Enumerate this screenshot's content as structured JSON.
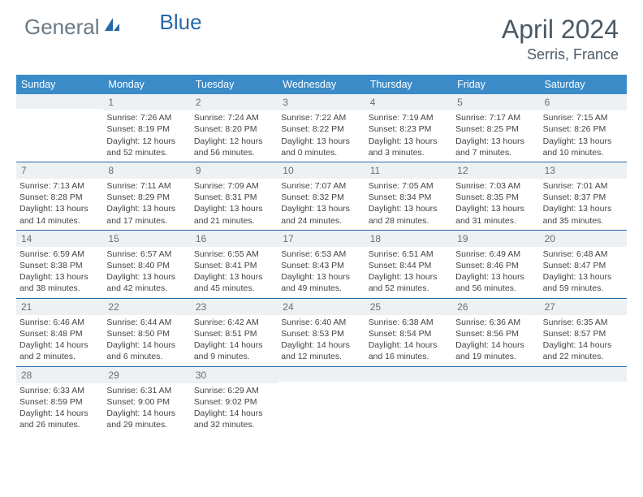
{
  "brand": {
    "part1": "General",
    "part2": "Blue"
  },
  "title": "April 2024",
  "location": "Serris, France",
  "colors": {
    "header_bar": "#3b8bc9",
    "rule": "#2869a8",
    "daynum_bg": "#eef1f3",
    "text": "#3a3a3a",
    "brand_gray": "#6a7a85",
    "brand_blue": "#2869a8"
  },
  "dow": [
    "Sunday",
    "Monday",
    "Tuesday",
    "Wednesday",
    "Thursday",
    "Friday",
    "Saturday"
  ],
  "weeks": [
    [
      {
        "n": "",
        "sunrise": "",
        "sunset": "",
        "daylight": ""
      },
      {
        "n": "1",
        "sunrise": "Sunrise: 7:26 AM",
        "sunset": "Sunset: 8:19 PM",
        "daylight": "Daylight: 12 hours and 52 minutes."
      },
      {
        "n": "2",
        "sunrise": "Sunrise: 7:24 AM",
        "sunset": "Sunset: 8:20 PM",
        "daylight": "Daylight: 12 hours and 56 minutes."
      },
      {
        "n": "3",
        "sunrise": "Sunrise: 7:22 AM",
        "sunset": "Sunset: 8:22 PM",
        "daylight": "Daylight: 13 hours and 0 minutes."
      },
      {
        "n": "4",
        "sunrise": "Sunrise: 7:19 AM",
        "sunset": "Sunset: 8:23 PM",
        "daylight": "Daylight: 13 hours and 3 minutes."
      },
      {
        "n": "5",
        "sunrise": "Sunrise: 7:17 AM",
        "sunset": "Sunset: 8:25 PM",
        "daylight": "Daylight: 13 hours and 7 minutes."
      },
      {
        "n": "6",
        "sunrise": "Sunrise: 7:15 AM",
        "sunset": "Sunset: 8:26 PM",
        "daylight": "Daylight: 13 hours and 10 minutes."
      }
    ],
    [
      {
        "n": "7",
        "sunrise": "Sunrise: 7:13 AM",
        "sunset": "Sunset: 8:28 PM",
        "daylight": "Daylight: 13 hours and 14 minutes."
      },
      {
        "n": "8",
        "sunrise": "Sunrise: 7:11 AM",
        "sunset": "Sunset: 8:29 PM",
        "daylight": "Daylight: 13 hours and 17 minutes."
      },
      {
        "n": "9",
        "sunrise": "Sunrise: 7:09 AM",
        "sunset": "Sunset: 8:31 PM",
        "daylight": "Daylight: 13 hours and 21 minutes."
      },
      {
        "n": "10",
        "sunrise": "Sunrise: 7:07 AM",
        "sunset": "Sunset: 8:32 PM",
        "daylight": "Daylight: 13 hours and 24 minutes."
      },
      {
        "n": "11",
        "sunrise": "Sunrise: 7:05 AM",
        "sunset": "Sunset: 8:34 PM",
        "daylight": "Daylight: 13 hours and 28 minutes."
      },
      {
        "n": "12",
        "sunrise": "Sunrise: 7:03 AM",
        "sunset": "Sunset: 8:35 PM",
        "daylight": "Daylight: 13 hours and 31 minutes."
      },
      {
        "n": "13",
        "sunrise": "Sunrise: 7:01 AM",
        "sunset": "Sunset: 8:37 PM",
        "daylight": "Daylight: 13 hours and 35 minutes."
      }
    ],
    [
      {
        "n": "14",
        "sunrise": "Sunrise: 6:59 AM",
        "sunset": "Sunset: 8:38 PM",
        "daylight": "Daylight: 13 hours and 38 minutes."
      },
      {
        "n": "15",
        "sunrise": "Sunrise: 6:57 AM",
        "sunset": "Sunset: 8:40 PM",
        "daylight": "Daylight: 13 hours and 42 minutes."
      },
      {
        "n": "16",
        "sunrise": "Sunrise: 6:55 AM",
        "sunset": "Sunset: 8:41 PM",
        "daylight": "Daylight: 13 hours and 45 minutes."
      },
      {
        "n": "17",
        "sunrise": "Sunrise: 6:53 AM",
        "sunset": "Sunset: 8:43 PM",
        "daylight": "Daylight: 13 hours and 49 minutes."
      },
      {
        "n": "18",
        "sunrise": "Sunrise: 6:51 AM",
        "sunset": "Sunset: 8:44 PM",
        "daylight": "Daylight: 13 hours and 52 minutes."
      },
      {
        "n": "19",
        "sunrise": "Sunrise: 6:49 AM",
        "sunset": "Sunset: 8:46 PM",
        "daylight": "Daylight: 13 hours and 56 minutes."
      },
      {
        "n": "20",
        "sunrise": "Sunrise: 6:48 AM",
        "sunset": "Sunset: 8:47 PM",
        "daylight": "Daylight: 13 hours and 59 minutes."
      }
    ],
    [
      {
        "n": "21",
        "sunrise": "Sunrise: 6:46 AM",
        "sunset": "Sunset: 8:48 PM",
        "daylight": "Daylight: 14 hours and 2 minutes."
      },
      {
        "n": "22",
        "sunrise": "Sunrise: 6:44 AM",
        "sunset": "Sunset: 8:50 PM",
        "daylight": "Daylight: 14 hours and 6 minutes."
      },
      {
        "n": "23",
        "sunrise": "Sunrise: 6:42 AM",
        "sunset": "Sunset: 8:51 PM",
        "daylight": "Daylight: 14 hours and 9 minutes."
      },
      {
        "n": "24",
        "sunrise": "Sunrise: 6:40 AM",
        "sunset": "Sunset: 8:53 PM",
        "daylight": "Daylight: 14 hours and 12 minutes."
      },
      {
        "n": "25",
        "sunrise": "Sunrise: 6:38 AM",
        "sunset": "Sunset: 8:54 PM",
        "daylight": "Daylight: 14 hours and 16 minutes."
      },
      {
        "n": "26",
        "sunrise": "Sunrise: 6:36 AM",
        "sunset": "Sunset: 8:56 PM",
        "daylight": "Daylight: 14 hours and 19 minutes."
      },
      {
        "n": "27",
        "sunrise": "Sunrise: 6:35 AM",
        "sunset": "Sunset: 8:57 PM",
        "daylight": "Daylight: 14 hours and 22 minutes."
      }
    ],
    [
      {
        "n": "28",
        "sunrise": "Sunrise: 6:33 AM",
        "sunset": "Sunset: 8:59 PM",
        "daylight": "Daylight: 14 hours and 26 minutes."
      },
      {
        "n": "29",
        "sunrise": "Sunrise: 6:31 AM",
        "sunset": "Sunset: 9:00 PM",
        "daylight": "Daylight: 14 hours and 29 minutes."
      },
      {
        "n": "30",
        "sunrise": "Sunrise: 6:29 AM",
        "sunset": "Sunset: 9:02 PM",
        "daylight": "Daylight: 14 hours and 32 minutes."
      },
      {
        "n": "",
        "sunrise": "",
        "sunset": "",
        "daylight": ""
      },
      {
        "n": "",
        "sunrise": "",
        "sunset": "",
        "daylight": ""
      },
      {
        "n": "",
        "sunrise": "",
        "sunset": "",
        "daylight": ""
      },
      {
        "n": "",
        "sunrise": "",
        "sunset": "",
        "daylight": ""
      }
    ]
  ]
}
